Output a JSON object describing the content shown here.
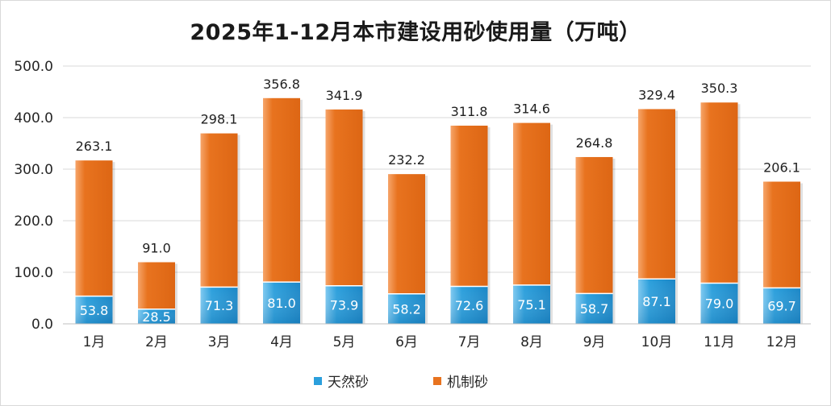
{
  "chart_data": {
    "type": "bar",
    "stacked": true,
    "title": "2025年1-12月本市建设用砂使用量（万吨）",
    "categories": [
      "1月",
      "2月",
      "3月",
      "4月",
      "5月",
      "6月",
      "7月",
      "8月",
      "9月",
      "10月",
      "11月",
      "12月"
    ],
    "series": [
      {
        "name": "天然砂",
        "color": "#2b9fdc",
        "values": [
          53.8,
          28.5,
          71.3,
          81.0,
          73.9,
          58.2,
          72.6,
          75.1,
          58.7,
          87.1,
          79.0,
          69.7
        ]
      },
      {
        "name": "机制砂",
        "color": "#e8731f",
        "values": [
          263.1,
          91.0,
          298.1,
          356.8,
          341.9,
          232.2,
          311.8,
          314.6,
          264.8,
          329.4,
          350.3,
          206.1
        ]
      }
    ],
    "ylim": [
      0,
      500
    ],
    "yticks": [
      "0.0",
      "100.0",
      "200.0",
      "300.0",
      "400.0",
      "500.0"
    ],
    "grid": true,
    "legend_position": "bottom"
  }
}
